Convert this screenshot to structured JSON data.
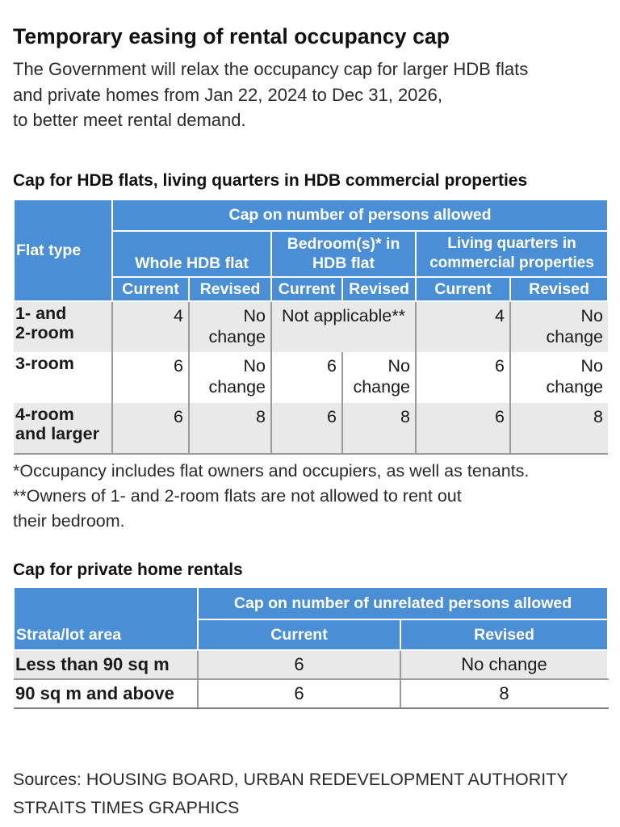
{
  "title": "Temporary easing of rental occupancy cap",
  "intro": [
    "The Government will relax the occupancy cap for larger HDB flats",
    "and private homes from Jan 22, 2024 to Dec 31, 2026,",
    "to better meet rental demand."
  ],
  "hdb_section": {
    "title": "Cap for HDB flats, living quarters in HDB commercial properties",
    "header_group": "Cap on number of persons allowed",
    "col_flat_type": "Flat type",
    "groups": [
      "Whole HDB flat",
      "Bedroom(s)* in HDB flat",
      "Living quarters in commercial properties"
    ],
    "sub_current": "Current",
    "sub_revised": "Revised",
    "rows": [
      {
        "flat_type": [
          "1- and",
          "2-room"
        ],
        "whole_current": "4",
        "whole_revised": [
          "No",
          "change"
        ],
        "bedroom_merged": "Not applicable**",
        "living_current": "4",
        "living_revised": [
          "No",
          "change"
        ]
      },
      {
        "flat_type": [
          "3-room"
        ],
        "whole_current": "6",
        "whole_revised": [
          "No",
          "change"
        ],
        "bedroom_current": "6",
        "bedroom_revised": [
          "No",
          "change"
        ],
        "living_current": "6",
        "living_revised": [
          "No",
          "change"
        ]
      },
      {
        "flat_type": [
          "4-room",
          "and larger"
        ],
        "whole_current": "6",
        "whole_revised": "8",
        "bedroom_current": "6",
        "bedroom_revised": "8",
        "living_current": "6",
        "living_revised": "8"
      }
    ]
  },
  "notes": [
    "*Occupancy includes flat owners and occupiers, as well as tenants.",
    "**Owners of 1- and 2-room flats are not allowed to rent out",
    "their bedroom."
  ],
  "private_section": {
    "title": "Cap for private home rentals",
    "header_group": "Cap on number of unrelated persons allowed",
    "col_area": "Strata/lot area",
    "col_current": "Current",
    "col_revised": "Revised",
    "rows": [
      {
        "area": "Less than 90 sq m",
        "current": "6",
        "revised": "No change"
      },
      {
        "area": "90 sq m and above",
        "current": "6",
        "revised": "8"
      }
    ]
  },
  "sources": [
    "Sources: HOUSING BOARD, URBAN REDEVELOPMENT AUTHORITY",
    "STRAITS TIMES GRAPHICS"
  ]
}
